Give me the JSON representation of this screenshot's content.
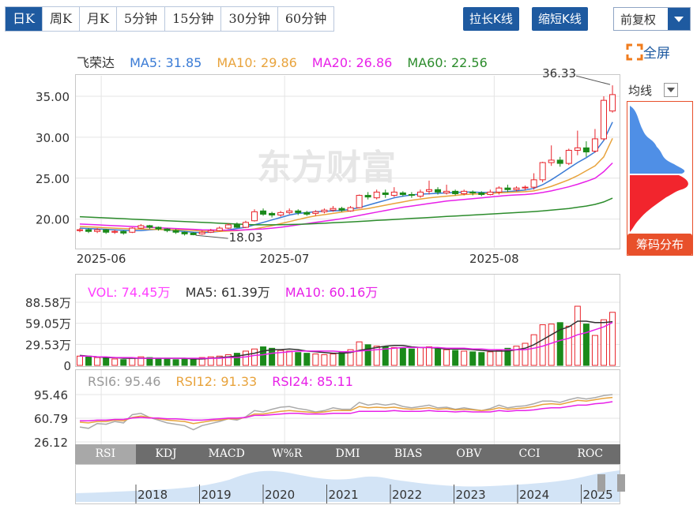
{
  "tabs": [
    {
      "label": "日K",
      "active": true
    },
    {
      "label": "周K"
    },
    {
      "label": "月K"
    },
    {
      "label": "5分钟"
    },
    {
      "label": "15分钟"
    },
    {
      "label": "30分钟"
    },
    {
      "label": "60分钟"
    }
  ],
  "toolbar": {
    "stretch_label": "拉长K线",
    "shorten_label": "缩短K线",
    "rights_label": "前复权",
    "fullscreen_label": "全屏"
  },
  "chip": {
    "mode_label": "均线",
    "button_label": "筹码分布"
  },
  "watermark": "东方财富",
  "colors": {
    "up": "#e8242b",
    "down": "#1a8a1a",
    "ma5": "#3a7bd5",
    "ma10": "#e8a33c",
    "ma20": "#e820e8",
    "ma60": "#2c8c2c",
    "vol": "#ff60ff"
  },
  "price_legend": {
    "name": "飞荣达",
    "ma5": "MA5: 31.85",
    "ma10": "MA10: 29.86",
    "ma20": "MA20: 26.86",
    "ma60": "MA60: 22.56"
  },
  "vol_legend": {
    "vol": "VOL: 74.45万",
    "ma5": "MA5: 61.39万",
    "ma10": "MA10: 60.16万"
  },
  "rsi_legend": {
    "rsi6": "RSI6: 95.46",
    "rsi12": "RSI12: 91.33",
    "rsi24": "RSI24: 85.11"
  },
  "indicator_tabs": [
    {
      "label": "RSI",
      "active": true
    },
    {
      "label": "KDJ"
    },
    {
      "label": "MACD"
    },
    {
      "label": "W%R"
    },
    {
      "label": "DMI"
    },
    {
      "label": "BIAS"
    },
    {
      "label": "OBV"
    },
    {
      "label": "CCI"
    },
    {
      "label": "ROC"
    }
  ],
  "timeline_years": [
    "2018",
    "2019",
    "2020",
    "2021",
    "2022",
    "2023",
    "2024",
    "2025"
  ],
  "chart_data": [
    {
      "type": "candlestick",
      "name": "price",
      "ylim": [
        16.5,
        37.5
      ],
      "y_ticks": [
        "35.00",
        "30.00",
        "25.00",
        "20.00"
      ],
      "x_tick_labels": [
        {
          "label": "2025-06",
          "index": 2
        },
        {
          "label": "2025-07",
          "index": 23
        },
        {
          "label": "2025-08",
          "index": 47
        }
      ],
      "annotations": [
        {
          "label": "36.33",
          "index": 61,
          "value": 36.33
        },
        {
          "label": "18.03",
          "index": 13,
          "value": 18.03
        }
      ],
      "candles": [
        [
          18.6,
          18.7,
          18.9,
          18.4
        ],
        [
          18.7,
          18.5,
          18.9,
          18.3
        ],
        [
          18.5,
          18.7,
          18.9,
          18.3
        ],
        [
          18.7,
          18.4,
          18.8,
          18.2
        ],
        [
          18.4,
          18.5,
          18.7,
          18.2
        ],
        [
          18.5,
          18.3,
          18.6,
          18.1
        ],
        [
          18.4,
          18.9,
          19.0,
          18.3
        ],
        [
          18.9,
          19.2,
          19.4,
          18.8
        ],
        [
          19.2,
          19.0,
          19.3,
          18.8
        ],
        [
          19.0,
          18.8,
          19.1,
          18.6
        ],
        [
          18.8,
          18.6,
          18.9,
          18.4
        ],
        [
          18.6,
          18.4,
          18.8,
          18.2
        ],
        [
          18.4,
          18.2,
          18.5,
          18.0
        ],
        [
          18.3,
          18.1,
          18.4,
          18.03
        ],
        [
          18.2,
          18.4,
          18.6,
          18.1
        ],
        [
          18.4,
          18.6,
          18.8,
          18.3
        ],
        [
          18.6,
          18.9,
          19.1,
          18.5
        ],
        [
          18.9,
          19.3,
          19.5,
          18.8
        ],
        [
          19.3,
          19.0,
          19.6,
          18.9
        ],
        [
          19.0,
          19.6,
          19.8,
          18.9
        ],
        [
          19.8,
          20.9,
          21.2,
          19.7
        ],
        [
          21.0,
          20.6,
          21.3,
          20.4
        ],
        [
          20.7,
          20.5,
          20.9,
          20.2
        ],
        [
          20.5,
          20.8,
          21.0,
          20.3
        ],
        [
          20.8,
          21.0,
          21.3,
          20.6
        ],
        [
          21.0,
          20.8,
          21.2,
          20.5
        ],
        [
          20.8,
          20.6,
          21.0,
          20.4
        ],
        [
          20.7,
          20.9,
          21.1,
          20.4
        ],
        [
          20.9,
          21.1,
          21.3,
          20.7
        ],
        [
          21.1,
          21.3,
          21.6,
          20.9
        ],
        [
          21.3,
          21.1,
          21.5,
          20.9
        ],
        [
          21.0,
          21.4,
          21.6,
          20.9
        ],
        [
          21.4,
          22.9,
          23.0,
          21.3
        ],
        [
          22.9,
          22.7,
          23.3,
          22.4
        ],
        [
          22.6,
          23.3,
          23.6,
          22.4
        ],
        [
          23.2,
          23.0,
          23.6,
          22.6
        ],
        [
          22.9,
          23.3,
          23.9,
          22.7
        ],
        [
          23.2,
          23.0,
          23.4,
          22.8
        ],
        [
          23.0,
          22.9,
          23.3,
          22.6
        ],
        [
          22.8,
          23.3,
          23.6,
          22.6
        ],
        [
          23.4,
          23.6,
          24.7,
          23.0
        ],
        [
          23.6,
          23.3,
          23.9,
          23.0
        ],
        [
          23.2,
          23.4,
          24.2,
          23.0
        ],
        [
          23.4,
          23.1,
          23.6,
          22.9
        ],
        [
          23.1,
          23.4,
          23.6,
          22.9
        ],
        [
          23.3,
          23.2,
          23.5,
          22.9
        ],
        [
          23.2,
          23.0,
          23.4,
          22.8
        ],
        [
          23.0,
          23.3,
          23.6,
          22.9
        ],
        [
          23.3,
          23.8,
          24.0,
          23.0
        ],
        [
          23.8,
          23.6,
          24.2,
          23.3
        ],
        [
          23.6,
          23.8,
          24.0,
          23.4
        ],
        [
          23.8,
          23.9,
          24.1,
          23.5
        ],
        [
          23.9,
          24.8,
          25.6,
          23.6
        ],
        [
          24.8,
          26.9,
          27.0,
          24.5
        ],
        [
          26.9,
          27.2,
          29.0,
          26.5
        ],
        [
          27.2,
          26.8,
          27.6,
          26.4
        ],
        [
          26.8,
          28.4,
          28.6,
          26.6
        ],
        [
          28.4,
          28.7,
          30.8,
          27.8
        ],
        [
          28.7,
          28.2,
          29.5,
          27.6
        ],
        [
          28.3,
          29.8,
          31.0,
          28.1
        ],
        [
          29.8,
          34.5,
          35.0,
          29.6
        ],
        [
          33.2,
          35.2,
          36.33,
          33.0
        ]
      ],
      "series": [
        {
          "name": "MA5",
          "values": [
            18.9,
            18.85,
            18.8,
            18.75,
            18.7,
            18.65,
            18.6,
            18.6,
            18.7,
            18.75,
            18.7,
            18.6,
            18.5,
            18.4,
            18.35,
            18.4,
            18.5,
            18.7,
            18.85,
            19.0,
            19.3,
            19.6,
            19.9,
            20.2,
            20.5,
            20.7,
            20.8,
            20.9,
            20.95,
            21.0,
            21.05,
            21.2,
            21.4,
            21.7,
            22.0,
            22.3,
            22.6,
            22.8,
            22.95,
            23.05,
            23.1,
            23.15,
            23.2,
            23.25,
            23.3,
            23.3,
            23.25,
            23.25,
            23.3,
            23.35,
            23.45,
            23.55,
            23.75,
            24.2,
            24.8,
            25.5,
            26.2,
            26.9,
            27.5,
            28.2,
            29.6,
            31.85
          ]
        },
        {
          "name": "MA10",
          "values": [
            19.1,
            19.05,
            19.0,
            18.95,
            18.9,
            18.85,
            18.8,
            18.78,
            18.76,
            18.74,
            18.72,
            18.7,
            18.68,
            18.62,
            18.55,
            18.5,
            18.5,
            18.55,
            18.6,
            18.7,
            18.8,
            19.0,
            19.2,
            19.45,
            19.7,
            19.95,
            20.2,
            20.4,
            20.55,
            20.7,
            20.85,
            21.0,
            21.15,
            21.3,
            21.5,
            21.7,
            21.9,
            22.1,
            22.3,
            22.45,
            22.6,
            22.7,
            22.8,
            22.9,
            23.0,
            23.05,
            23.1,
            23.15,
            23.2,
            23.25,
            23.3,
            23.35,
            23.45,
            23.7,
            24.0,
            24.4,
            24.8,
            25.3,
            25.9,
            26.5,
            27.6,
            29.86
          ]
        },
        {
          "name": "MA20",
          "values": [
            19.4,
            19.35,
            19.3,
            19.25,
            19.2,
            19.15,
            19.1,
            19.05,
            19.0,
            18.95,
            18.9,
            18.85,
            18.8,
            18.75,
            18.7,
            18.68,
            18.66,
            18.65,
            18.65,
            18.7,
            18.75,
            18.8,
            18.9,
            19.0,
            19.15,
            19.3,
            19.45,
            19.6,
            19.75,
            19.9,
            20.05,
            20.25,
            20.45,
            20.65,
            20.85,
            21.05,
            21.25,
            21.45,
            21.6,
            21.75,
            21.9,
            22.05,
            22.2,
            22.3,
            22.4,
            22.5,
            22.6,
            22.7,
            22.8,
            22.9,
            22.95,
            23.0,
            23.1,
            23.25,
            23.45,
            23.7,
            23.95,
            24.25,
            24.6,
            25.0,
            25.8,
            26.86
          ]
        },
        {
          "name": "MA60",
          "values": [
            20.3,
            20.25,
            20.2,
            20.15,
            20.1,
            20.05,
            20.0,
            19.95,
            19.9,
            19.85,
            19.8,
            19.75,
            19.7,
            19.65,
            19.6,
            19.55,
            19.5,
            19.45,
            19.4,
            19.35,
            19.3,
            19.3,
            19.3,
            19.32,
            19.34,
            19.36,
            19.4,
            19.45,
            19.5,
            19.55,
            19.6,
            19.66,
            19.72,
            19.78,
            19.84,
            19.9,
            19.96,
            20.02,
            20.08,
            20.14,
            20.2,
            20.26,
            20.32,
            20.38,
            20.44,
            20.5,
            20.56,
            20.62,
            20.68,
            20.74,
            20.8,
            20.86,
            20.92,
            21.0,
            21.1,
            21.2,
            21.3,
            21.45,
            21.6,
            21.8,
            22.1,
            22.56
          ]
        }
      ]
    },
    {
      "type": "bar",
      "name": "volume",
      "ylim": [
        0,
        88.58
      ],
      "y_ticks": [
        "88.58万",
        "59.05万",
        "29.53万",
        "0"
      ],
      "values": [
        13,
        12,
        11,
        10,
        9,
        8,
        10,
        12,
        11,
        10,
        9,
        8,
        9,
        10,
        11,
        12,
        13,
        15,
        17,
        20,
        23,
        26,
        24,
        21,
        20,
        18,
        17,
        16,
        15,
        16,
        19,
        22,
        33,
        29,
        27,
        26,
        25,
        24,
        23,
        25,
        26,
        23,
        22,
        21,
        20,
        19,
        18,
        19,
        21,
        24,
        27,
        31,
        43,
        57,
        58,
        60,
        55,
        83,
        58,
        42,
        64,
        74.45
      ],
      "series": [
        {
          "name": "MA5",
          "values": [
            14,
            13,
            12,
            11,
            11,
            10,
            10,
            10,
            10,
            10,
            10,
            10,
            10,
            9,
            9,
            10,
            11,
            12,
            13,
            15,
            17,
            20,
            22,
            22,
            23,
            22,
            20,
            19,
            18,
            17,
            17,
            18,
            21,
            23,
            25,
            27,
            28,
            28,
            26,
            25,
            25,
            24,
            23,
            23,
            23,
            22,
            21,
            20,
            20,
            20,
            22,
            24,
            29,
            36,
            43,
            50,
            54,
            62,
            62,
            60,
            60,
            61.39
          ]
        },
        {
          "name": "MA10",
          "values": [
            13,
            13,
            12,
            12,
            11,
            11,
            11,
            10,
            10,
            10,
            10,
            10,
            10,
            10,
            10,
            10,
            10,
            11,
            11,
            12,
            14,
            15,
            17,
            18,
            19,
            20,
            20,
            20,
            20,
            20,
            19,
            19,
            20,
            21,
            22,
            23,
            24,
            25,
            25,
            25,
            25,
            25,
            24,
            24,
            24,
            23,
            23,
            22,
            22,
            22,
            22,
            22,
            24,
            27,
            31,
            35,
            38,
            43,
            46,
            50,
            54,
            60.16
          ]
        }
      ]
    },
    {
      "type": "line",
      "name": "RSI",
      "ylim": [
        26.12,
        95.46
      ],
      "y_ticks": [
        "95.46",
        "60.79",
        "26.12"
      ],
      "series": [
        {
          "name": "RSI6",
          "values": [
            48,
            46,
            53,
            52,
            56,
            54,
            66,
            68,
            62,
            58,
            54,
            52,
            50,
            44,
            50,
            53,
            56,
            60,
            58,
            63,
            72,
            70,
            74,
            77,
            78,
            75,
            73,
            70,
            72,
            76,
            74,
            74,
            84,
            80,
            82,
            80,
            82,
            78,
            76,
            78,
            80,
            76,
            77,
            74,
            76,
            74,
            72,
            75,
            80,
            76,
            78,
            79,
            82,
            86,
            86,
            84,
            88,
            91,
            89,
            91,
            94,
            95.46
          ]
        },
        {
          "name": "RSI12",
          "values": [
            55,
            54,
            56,
            56,
            58,
            57,
            62,
            64,
            62,
            60,
            58,
            57,
            56,
            53,
            55,
            57,
            58,
            60,
            60,
            62,
            67,
            67,
            69,
            71,
            72,
            71,
            70,
            69,
            70,
            72,
            72,
            72,
            78,
            76,
            77,
            76,
            77,
            75,
            74,
            75,
            76,
            74,
            75,
            73,
            74,
            73,
            72,
            73,
            76,
            74,
            75,
            76,
            78,
            81,
            82,
            81,
            84,
            87,
            86,
            88,
            90,
            91.33
          ]
        },
        {
          "name": "RSI24",
          "values": [
            57,
            57,
            58,
            58,
            59,
            59,
            61,
            62,
            61,
            61,
            60,
            60,
            59,
            58,
            58,
            59,
            60,
            61,
            61,
            62,
            65,
            65,
            66,
            67,
            68,
            68,
            67,
            67,
            67,
            68,
            68,
            68,
            71,
            71,
            71,
            71,
            72,
            71,
            71,
            71,
            72,
            71,
            71,
            70,
            71,
            70,
            70,
            70,
            72,
            71,
            72,
            72,
            73,
            75,
            76,
            76,
            78,
            80,
            80,
            82,
            83,
            85.11
          ]
        }
      ]
    }
  ]
}
